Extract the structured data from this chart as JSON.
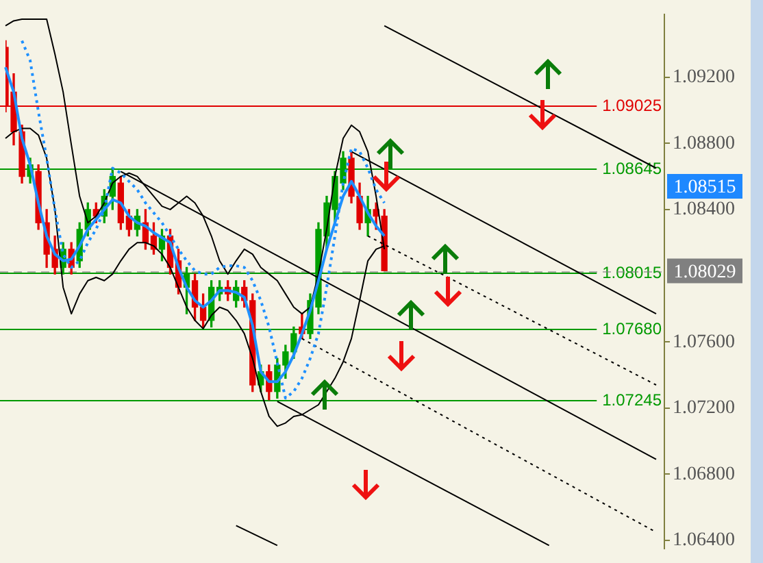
{
  "chart_data": {
    "type": "candlestick",
    "grid": false,
    "categories": [
      null,
      null,
      null,
      null,
      null,
      null,
      null,
      null,
      null,
      null,
      null,
      null,
      null,
      null,
      null,
      null,
      null,
      null,
      null,
      null,
      null,
      null,
      null,
      null,
      null,
      null,
      null,
      null,
      null,
      null,
      null,
      null,
      null,
      null,
      null,
      null,
      null,
      null,
      null,
      null,
      null,
      null,
      null,
      null,
      null,
      null,
      null,
      null,
      null,
      null,
      null,
      null,
      null,
      null,
      null,
      null,
      null,
      null,
      null,
      null,
      null,
      null,
      null,
      null,
      null,
      null,
      null,
      null,
      null,
      null,
      null,
      null,
      null,
      null,
      null,
      null,
      null,
      null,
      null,
      null,
      null
    ],
    "ohlc": [
      [
        1.0938,
        1.0942,
        1.0899,
        1.0903
      ],
      [
        1.0911,
        1.0922,
        1.0879,
        1.0887
      ],
      [
        1.0887,
        1.0891,
        1.0856,
        1.086
      ],
      [
        1.086,
        1.0871,
        1.0856,
        1.0867
      ],
      [
        1.0863,
        1.0867,
        1.0828,
        1.0832
      ],
      [
        1.0832,
        1.084,
        1.0805,
        1.0813
      ],
      [
        1.0816,
        1.0824,
        1.0801,
        1.0805
      ],
      [
        1.0805,
        1.082,
        1.0801,
        1.0816
      ],
      [
        1.0816,
        1.082,
        1.0801,
        1.0805
      ],
      [
        1.0809,
        1.0832,
        1.0805,
        1.0828
      ],
      [
        1.0828,
        1.0844,
        1.0824,
        1.084
      ],
      [
        1.084,
        1.0844,
        1.0832,
        1.0836
      ],
      [
        1.0836,
        1.0852,
        1.0832,
        1.0848
      ],
      [
        1.0848,
        1.0865,
        1.084,
        1.086
      ],
      [
        1.0856,
        1.086,
        1.0828,
        1.0832
      ],
      [
        1.0836,
        1.084,
        1.0824,
        1.0828
      ],
      [
        1.0828,
        1.084,
        1.0824,
        1.0836
      ],
      [
        1.0832,
        1.084,
        1.0816,
        1.082
      ],
      [
        1.0824,
        1.0832,
        1.0813,
        1.0816
      ],
      [
        1.0816,
        1.0828,
        1.0809,
        1.0824
      ],
      [
        1.0824,
        1.0828,
        1.0801,
        1.0805
      ],
      [
        1.0809,
        1.0816,
        1.0789,
        1.0793
      ],
      [
        1.0793,
        1.0805,
        1.0777,
        1.0801
      ],
      [
        1.0797,
        1.0801,
        1.0773,
        1.0781
      ],
      [
        1.0781,
        1.0789,
        1.0769,
        1.0773
      ],
      [
        1.0773,
        1.0797,
        1.0769,
        1.0793
      ],
      [
        1.0789,
        1.0797,
        1.0785,
        1.0793
      ],
      [
        1.0793,
        1.0797,
        1.0785,
        1.0789
      ],
      [
        1.0785,
        1.0797,
        1.0781,
        1.0793
      ],
      [
        1.0793,
        1.0797,
        1.0781,
        1.0785
      ],
      [
        1.0785,
        1.0789,
        1.073,
        1.0734
      ],
      [
        1.0734,
        1.0746,
        1.073,
        1.0742
      ],
      [
        1.0742,
        1.0746,
        1.0725,
        1.073
      ],
      [
        1.073,
        1.075,
        1.0726,
        1.0746
      ],
      [
        1.0746,
        1.0758,
        1.0738,
        1.0754
      ],
      [
        1.0754,
        1.0769,
        1.075,
        1.0765
      ],
      [
        1.0769,
        1.0777,
        1.0762,
        1.0765
      ],
      [
        1.0765,
        1.0789,
        1.0762,
        1.0785
      ],
      [
        1.0781,
        1.0832,
        1.0777,
        1.0828
      ],
      [
        1.0824,
        1.0848,
        1.0816,
        1.0844
      ],
      [
        1.084,
        1.0863,
        1.0832,
        1.086
      ],
      [
        1.0856,
        1.0875,
        1.0852,
        1.0871
      ],
      [
        1.0871,
        1.0875,
        1.0844,
        1.0848
      ],
      [
        1.0848,
        1.0856,
        1.0828,
        1.0832
      ],
      [
        1.0832,
        1.0848,
        1.0824,
        1.084
      ],
      [
        1.084,
        1.0844,
        1.0828,
        1.0836
      ],
      [
        1.0836,
        1.084,
        1.0803,
        1.0803
      ],
      null,
      null,
      null,
      null,
      null,
      null,
      null,
      null,
      null,
      null,
      null,
      null,
      null,
      null,
      null,
      null,
      null,
      null,
      null,
      null,
      null,
      null,
      null,
      null,
      null,
      null,
      null,
      null,
      null,
      null,
      null,
      null,
      null,
      null
    ],
    "colors": [
      "#e00000",
      "#e00000",
      "#e00000",
      "#00a000",
      "#e00000",
      "#e00000",
      "#e00000",
      "#00a000",
      "#e00000",
      "#00a000",
      "#00a000",
      "#e00000",
      "#00a000",
      "#00a000",
      "#e00000",
      "#e00000",
      "#00a000",
      "#e00000",
      "#e00000",
      "#00a000",
      "#e00000",
      "#e00000",
      "#00a000",
      "#e00000",
      "#e00000",
      "#00a000",
      "#00a000",
      "#e00000",
      "#00a000",
      "#e00000",
      "#e00000",
      "#00a000",
      "#e00000",
      "#00a000",
      "#00a000",
      "#00a000",
      "#e00000",
      "#00a000",
      "#00a000",
      "#00a000",
      "#00a000",
      "#00a000",
      "#e00000",
      "#e00000",
      "#00a000",
      "#e00000",
      "#e00000",
      null,
      null,
      null,
      null,
      null,
      null,
      null,
      null,
      null,
      null,
      null,
      null,
      null,
      null,
      null,
      null,
      null,
      null,
      null,
      null,
      null,
      null,
      null,
      null,
      null,
      null,
      null,
      null,
      null,
      null,
      null,
      null,
      null,
      null
    ],
    "series": [
      {
        "type": "line",
        "color": "#1e90ff",
        "line_style": "solid",
        "values": [
          1.0926,
          1.0911,
          1.0883,
          1.0867,
          1.0844,
          1.0824,
          1.0813,
          1.0809,
          1.081,
          1.0818,
          1.0828,
          1.0834,
          1.084,
          1.0846,
          1.0844,
          1.0836,
          1.0832,
          1.083,
          1.0826,
          1.0823,
          1.082,
          1.0805,
          1.0793,
          1.0785,
          1.0781,
          1.0785,
          1.0791,
          1.0791,
          1.079,
          1.0787,
          1.077,
          1.0742,
          1.0736,
          1.0736,
          1.0742,
          1.0752,
          1.0765,
          1.0779,
          1.0797,
          1.0816,
          1.0832,
          1.0848,
          1.0857,
          1.0848,
          1.0838,
          1.083,
          1.0824,
          null,
          null,
          null,
          null,
          null,
          null,
          null,
          null,
          null,
          null,
          null,
          null,
          null,
          null,
          null,
          null,
          null,
          null,
          null,
          null,
          null,
          null,
          null,
          null,
          null,
          null,
          null,
          null,
          null,
          null,
          null,
          null,
          null,
          null
        ]
      },
      {
        "type": "line",
        "color": "#1e90ff",
        "line_style": "dotted",
        "values": [
          null,
          null,
          1.0942,
          1.093,
          1.0899,
          1.0871,
          1.084,
          1.0813,
          1.0805,
          1.0809,
          1.082,
          1.0828,
          1.084,
          1.0865,
          1.0862,
          1.0857,
          1.0852,
          1.0844,
          1.0838,
          1.0832,
          1.0824,
          1.0816,
          1.0809,
          1.0803,
          1.0801,
          1.0801,
          1.0805,
          1.0806,
          1.0806,
          1.0805,
          1.0797,
          1.0785,
          1.0769,
          null,
          1.0726,
          1.073,
          1.0738,
          1.075,
          1.0765,
          1.0793,
          1.0824,
          1.0856,
          1.0877,
          1.0875,
          1.0865,
          1.0852,
          1.0844,
          null,
          null,
          null,
          null,
          null,
          null,
          null,
          null,
          null,
          null,
          null,
          null,
          null,
          null,
          null,
          null,
          null,
          null,
          null,
          null,
          null,
          null,
          null,
          null,
          null,
          null,
          null,
          null,
          null,
          null,
          null,
          null,
          null,
          null
        ]
      },
      {
        "type": "line",
        "color": "#000000",
        "line_style": "solid",
        "values": [
          1.0951,
          1.0954,
          1.0955,
          1.0955,
          1.0955,
          1.0955,
          1.0934,
          1.0911,
          1.0879,
          1.0848,
          1.0832,
          1.0836,
          1.0844,
          1.0856,
          1.086,
          1.0862,
          1.086,
          1.0854,
          1.0848,
          1.0842,
          1.084,
          1.0844,
          1.0848,
          1.0844,
          1.0836,
          1.0824,
          1.0809,
          1.0801,
          1.0809,
          1.0816,
          1.0813,
          1.0805,
          1.0801,
          1.0797,
          1.0789,
          1.0781,
          1.0777,
          1.0781,
          1.0801,
          1.0828,
          1.086,
          1.0883,
          1.0891,
          1.0887,
          1.0875,
          1.0848,
          1.0816,
          null,
          null,
          null,
          null,
          null,
          null,
          null,
          null,
          null,
          null,
          null,
          null,
          null,
          null,
          null,
          null,
          null,
          null,
          null,
          null,
          null,
          null,
          null,
          null,
          null,
          null,
          null,
          null,
          null,
          null,
          null,
          null,
          null,
          null
        ]
      },
      {
        "type": "line",
        "color": "#000000",
        "line_style": "solid",
        "values": [
          1.0883,
          1.0887,
          1.0889,
          1.0889,
          1.0885,
          1.0871,
          1.084,
          1.0793,
          1.0777,
          1.0789,
          1.0797,
          1.0799,
          1.0797,
          1.0801,
          1.0809,
          1.0816,
          1.082,
          1.082,
          1.0818,
          1.0813,
          1.0805,
          1.0793,
          1.0781,
          1.0773,
          1.0768,
          1.0776,
          1.0781,
          1.0779,
          1.0773,
          1.0765,
          1.075,
          1.073,
          1.0715,
          1.0709,
          1.0711,
          1.0715,
          1.0716,
          1.0719,
          1.0722,
          1.073,
          1.0738,
          1.0748,
          1.0762,
          1.0785,
          1.0809,
          1.0816,
          1.0818,
          null,
          null,
          null,
          null,
          null,
          null,
          null,
          null,
          null,
          null,
          null,
          null,
          null,
          null,
          null,
          null,
          null,
          null,
          null,
          null,
          null,
          null,
          null,
          null,
          null,
          null,
          null,
          null,
          null,
          null,
          null,
          null,
          null,
          null
        ]
      },
      {
        "type": "line",
        "color": "#000000",
        "line_style": "solid",
        "values": [
          null,
          null,
          null,
          null,
          null,
          null,
          null,
          null,
          null,
          null,
          null,
          null,
          null,
          null,
          null,
          null,
          null,
          null,
          null,
          null,
          null,
          null,
          null,
          null,
          null,
          null,
          null,
          null,
          null,
          null,
          null,
          null,
          null,
          null,
          null,
          null,
          null,
          null,
          null,
          null,
          null,
          null,
          null,
          null,
          null,
          null,
          1.0951,
          null,
          null,
          null,
          null,
          null,
          null,
          null,
          null,
          null,
          null,
          null,
          null,
          null,
          null,
          null,
          null,
          null,
          null,
          null,
          null,
          null,
          null,
          null,
          null,
          null,
          null,
          null,
          null,
          null,
          null,
          null,
          null,
          1.0865,
          null
        ]
      },
      {
        "type": "line",
        "color": "#000000",
        "line_style": "solid",
        "values": [
          null,
          null,
          null,
          null,
          null,
          null,
          null,
          null,
          null,
          null,
          null,
          null,
          null,
          null,
          null,
          null,
          null,
          null,
          null,
          null,
          null,
          null,
          null,
          null,
          null,
          null,
          null,
          null,
          null,
          null,
          null,
          null,
          null,
          null,
          null,
          null,
          null,
          null,
          null,
          null,
          null,
          null,
          1.0875,
          null,
          null,
          null,
          null,
          null,
          null,
          null,
          null,
          null,
          null,
          null,
          null,
          null,
          null,
          null,
          null,
          null,
          null,
          null,
          null,
          null,
          null,
          null,
          null,
          null,
          null,
          null,
          null,
          null,
          null,
          null,
          null,
          null,
          null,
          null,
          null,
          1.0777,
          null
        ]
      },
      {
        "type": "line",
        "color": "#000000",
        "line_style": "dotted",
        "values": [
          null,
          null,
          null,
          null,
          null,
          null,
          null,
          null,
          null,
          null,
          null,
          null,
          null,
          null,
          null,
          null,
          null,
          null,
          null,
          null,
          null,
          null,
          null,
          null,
          null,
          null,
          null,
          null,
          null,
          null,
          null,
          null,
          null,
          null,
          null,
          null,
          null,
          null,
          null,
          null,
          null,
          null,
          null,
          null,
          1.0824,
          null,
          null,
          null,
          null,
          null,
          null,
          null,
          null,
          null,
          null,
          null,
          null,
          null,
          null,
          null,
          null,
          null,
          null,
          null,
          null,
          null,
          null,
          null,
          null,
          null,
          null,
          null,
          null,
          null,
          null,
          null,
          null,
          null,
          null,
          1.0734,
          null
        ]
      },
      {
        "type": "line",
        "color": "#000000",
        "line_style": "solid",
        "values": [
          null,
          null,
          null,
          null,
          null,
          null,
          null,
          null,
          null,
          null,
          null,
          null,
          null,
          null,
          1.0863,
          null,
          null,
          null,
          null,
          null,
          null,
          null,
          null,
          null,
          null,
          null,
          null,
          null,
          null,
          null,
          null,
          null,
          null,
          null,
          null,
          null,
          null,
          null,
          null,
          null,
          null,
          null,
          null,
          null,
          null,
          null,
          null,
          null,
          null,
          null,
          null,
          null,
          null,
          null,
          null,
          null,
          null,
          null,
          null,
          null,
          null,
          null,
          null,
          null,
          null,
          null,
          null,
          null,
          null,
          null,
          null,
          null,
          null,
          null,
          null,
          null,
          null,
          null,
          null,
          1.0689,
          null
        ]
      },
      {
        "type": "line",
        "color": "#000000",
        "line_style": "dotted",
        "values": [
          null,
          null,
          null,
          null,
          null,
          null,
          null,
          null,
          null,
          null,
          null,
          null,
          null,
          null,
          null,
          null,
          null,
          null,
          null,
          null,
          null,
          null,
          null,
          null,
          null,
          null,
          null,
          null,
          null,
          null,
          null,
          null,
          null,
          null,
          null,
          null,
          1.0762,
          null,
          null,
          null,
          null,
          null,
          null,
          null,
          null,
          null,
          null,
          null,
          null,
          null,
          null,
          null,
          null,
          null,
          null,
          null,
          null,
          null,
          null,
          null,
          null,
          null,
          null,
          null,
          null,
          null,
          null,
          null,
          null,
          null,
          null,
          null,
          null,
          null,
          null,
          null,
          null,
          null,
          null,
          1.0645,
          null
        ]
      },
      {
        "type": "line",
        "color": "#000000",
        "line_style": "solid",
        "values": [
          null,
          null,
          null,
          null,
          null,
          null,
          null,
          null,
          null,
          null,
          null,
          null,
          null,
          null,
          null,
          null,
          null,
          null,
          null,
          null,
          null,
          null,
          null,
          null,
          null,
          null,
          null,
          null,
          null,
          null,
          null,
          null,
          null,
          1.0724,
          null,
          null,
          null,
          null,
          null,
          null,
          null,
          null,
          null,
          null,
          null,
          null,
          null,
          null,
          null,
          null,
          null,
          null,
          null,
          null,
          null,
          null,
          null,
          null,
          null,
          null,
          null,
          null,
          null,
          null,
          null,
          null,
          1.0637,
          null,
          null,
          null,
          null,
          null,
          null,
          null,
          null,
          null,
          null,
          null,
          null,
          null,
          null
        ]
      },
      {
        "type": "line",
        "color": "#000000",
        "line_style": "solid",
        "values": [
          null,
          null,
          null,
          null,
          null,
          null,
          null,
          null,
          null,
          null,
          null,
          null,
          null,
          null,
          null,
          null,
          null,
          null,
          null,
          null,
          null,
          null,
          null,
          null,
          null,
          null,
          null,
          null,
          1.0649,
          null,
          null,
          null,
          null,
          1.0637,
          null,
          null,
          null,
          null,
          null,
          null,
          null,
          null,
          null,
          null,
          null,
          null,
          null,
          null,
          null,
          null,
          null,
          null,
          null,
          null,
          null,
          null,
          null,
          null,
          null,
          null,
          null,
          null,
          null,
          null,
          null,
          null,
          null,
          null,
          null,
          null,
          null,
          null,
          null,
          null,
          null,
          null,
          null,
          null,
          null,
          null,
          null
        ]
      }
    ],
    "ylim": [
      1.0635,
      1.0958
    ],
    "yticks": [
      {
        "value": 1.064,
        "label": "1.06400"
      },
      {
        "value": 1.068,
        "label": "1.06800"
      },
      {
        "value": 1.072,
        "label": "1.07200"
      },
      {
        "value": 1.076,
        "label": "1.07600"
      },
      {
        "value": 1.084,
        "label": "1.08400"
      },
      {
        "value": 1.088,
        "label": "1.08800"
      },
      {
        "value": 1.092,
        "label": "1.09200"
      }
    ],
    "ref_lines": [
      {
        "axis": "y",
        "value": 1.09025,
        "label": "1.09025",
        "color": "#e00000",
        "line_style": "solid"
      },
      {
        "axis": "y",
        "value": 1.08645,
        "label": "1.08645",
        "color": "#009900",
        "line_style": "solid"
      },
      {
        "axis": "y",
        "value": 1.08015,
        "label": "1.08015",
        "color": "#009900",
        "line_style": "solid"
      },
      {
        "axis": "y",
        "value": 1.0768,
        "label": "1.07680",
        "color": "#009900",
        "line_style": "solid"
      },
      {
        "axis": "y",
        "value": 1.07245,
        "label": "1.07245",
        "color": "#009900",
        "line_style": "solid"
      },
      {
        "axis": "y",
        "value": 1.08029,
        "label": "1.08029",
        "color": "#808080",
        "line_style": "dashed"
      }
    ],
    "annotations": [
      "1.08515"
    ]
  }
}
